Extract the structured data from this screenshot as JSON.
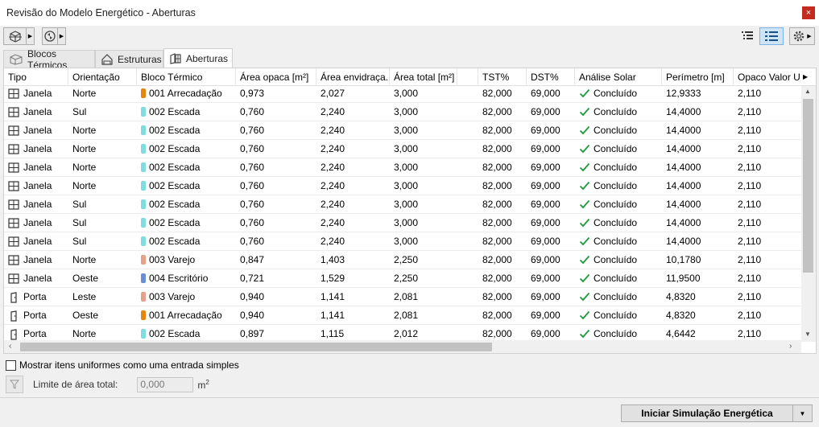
{
  "window": {
    "title": "Revisão do Modelo Energético - Aberturas",
    "close_glyph": "×"
  },
  "tabs": [
    {
      "label": "Blocos Térmicos",
      "active": false
    },
    {
      "label": "Estruturas",
      "active": false
    },
    {
      "label": "Aberturas",
      "active": true
    }
  ],
  "columns": [
    "Tipo",
    "Orientação",
    "Bloco Térmico",
    "Área opaca [m²]",
    "Área envidraça...",
    "Área total [m²]",
    "TST%",
    "DST%",
    "Análise Solar",
    "Perímetro [m]",
    "Opaco Valor U"
  ],
  "block_colors": {
    "001 Arrecadação": "#e8850c",
    "002 Escada": "#7fdce0",
    "003 Varejo": "#e8a08a",
    "004 Escritório": "#6b8fd6"
  },
  "check_color": "#1f9a3c",
  "rows": [
    {
      "type": "Janela",
      "icon": "window-icon",
      "orientation": "Norte",
      "block": "001 Arrecadação",
      "opaque": "0,973",
      "glazed": "2,027",
      "total": "3,000",
      "tst": "82,000",
      "dst": "69,000",
      "solar": "Concluído",
      "perimeter": "12,9333",
      "uvalue": "2,110"
    },
    {
      "type": "Janela",
      "icon": "window-icon",
      "orientation": "Sul",
      "block": "002 Escada",
      "opaque": "0,760",
      "glazed": "2,240",
      "total": "3,000",
      "tst": "82,000",
      "dst": "69,000",
      "solar": "Concluído",
      "perimeter": "14,4000",
      "uvalue": "2,110"
    },
    {
      "type": "Janela",
      "icon": "window-icon",
      "orientation": "Norte",
      "block": "002 Escada",
      "opaque": "0,760",
      "glazed": "2,240",
      "total": "3,000",
      "tst": "82,000",
      "dst": "69,000",
      "solar": "Concluído",
      "perimeter": "14,4000",
      "uvalue": "2,110"
    },
    {
      "type": "Janela",
      "icon": "window-icon",
      "orientation": "Norte",
      "block": "002 Escada",
      "opaque": "0,760",
      "glazed": "2,240",
      "total": "3,000",
      "tst": "82,000",
      "dst": "69,000",
      "solar": "Concluído",
      "perimeter": "14,4000",
      "uvalue": "2,110"
    },
    {
      "type": "Janela",
      "icon": "window-icon",
      "orientation": "Norte",
      "block": "002 Escada",
      "opaque": "0,760",
      "glazed": "2,240",
      "total": "3,000",
      "tst": "82,000",
      "dst": "69,000",
      "solar": "Concluído",
      "perimeter": "14,4000",
      "uvalue": "2,110"
    },
    {
      "type": "Janela",
      "icon": "window-icon",
      "orientation": "Norte",
      "block": "002 Escada",
      "opaque": "0,760",
      "glazed": "2,240",
      "total": "3,000",
      "tst": "82,000",
      "dst": "69,000",
      "solar": "Concluído",
      "perimeter": "14,4000",
      "uvalue": "2,110"
    },
    {
      "type": "Janela",
      "icon": "window-icon",
      "orientation": "Sul",
      "block": "002 Escada",
      "opaque": "0,760",
      "glazed": "2,240",
      "total": "3,000",
      "tst": "82,000",
      "dst": "69,000",
      "solar": "Concluído",
      "perimeter": "14,4000",
      "uvalue": "2,110"
    },
    {
      "type": "Janela",
      "icon": "window-icon",
      "orientation": "Sul",
      "block": "002 Escada",
      "opaque": "0,760",
      "glazed": "2,240",
      "total": "3,000",
      "tst": "82,000",
      "dst": "69,000",
      "solar": "Concluído",
      "perimeter": "14,4000",
      "uvalue": "2,110"
    },
    {
      "type": "Janela",
      "icon": "window-icon",
      "orientation": "Sul",
      "block": "002 Escada",
      "opaque": "0,760",
      "glazed": "2,240",
      "total": "3,000",
      "tst": "82,000",
      "dst": "69,000",
      "solar": "Concluído",
      "perimeter": "14,4000",
      "uvalue": "2,110"
    },
    {
      "type": "Janela",
      "icon": "window-icon",
      "orientation": "Norte",
      "block": "003 Varejo",
      "opaque": "0,847",
      "glazed": "1,403",
      "total": "2,250",
      "tst": "82,000",
      "dst": "69,000",
      "solar": "Concluído",
      "perimeter": "10,1780",
      "uvalue": "2,110"
    },
    {
      "type": "Janela",
      "icon": "window-icon",
      "orientation": "Oeste",
      "block": "004 Escritório",
      "opaque": "0,721",
      "glazed": "1,529",
      "total": "2,250",
      "tst": "82,000",
      "dst": "69,000",
      "solar": "Concluído",
      "perimeter": "11,9500",
      "uvalue": "2,110"
    },
    {
      "type": "Porta",
      "icon": "door-icon",
      "orientation": "Leste",
      "block": "003 Varejo",
      "opaque": "0,940",
      "glazed": "1,141",
      "total": "2,081",
      "tst": "82,000",
      "dst": "69,000",
      "solar": "Concluído",
      "perimeter": "4,8320",
      "uvalue": "2,110"
    },
    {
      "type": "Porta",
      "icon": "door-icon",
      "orientation": "Oeste",
      "block": "001 Arrecadação",
      "opaque": "0,940",
      "glazed": "1,141",
      "total": "2,081",
      "tst": "82,000",
      "dst": "69,000",
      "solar": "Concluído",
      "perimeter": "4,8320",
      "uvalue": "2,110"
    },
    {
      "type": "Porta",
      "icon": "door-icon",
      "orientation": "Norte",
      "block": "002 Escada",
      "opaque": "0,897",
      "glazed": "1,115",
      "total": "2,012",
      "tst": "82,000",
      "dst": "69,000",
      "solar": "Concluído",
      "perimeter": "4,6442",
      "uvalue": "2,110"
    }
  ],
  "options": {
    "uniform_label": "Mostrar itens uniformes como uma entrada simples",
    "area_limit_label": "Limite de área total:",
    "area_limit_value": "0,000",
    "area_unit": "m",
    "area_unit_sup": "2"
  },
  "footer": {
    "simulate_label": "Iniciar Simulação Energética"
  }
}
